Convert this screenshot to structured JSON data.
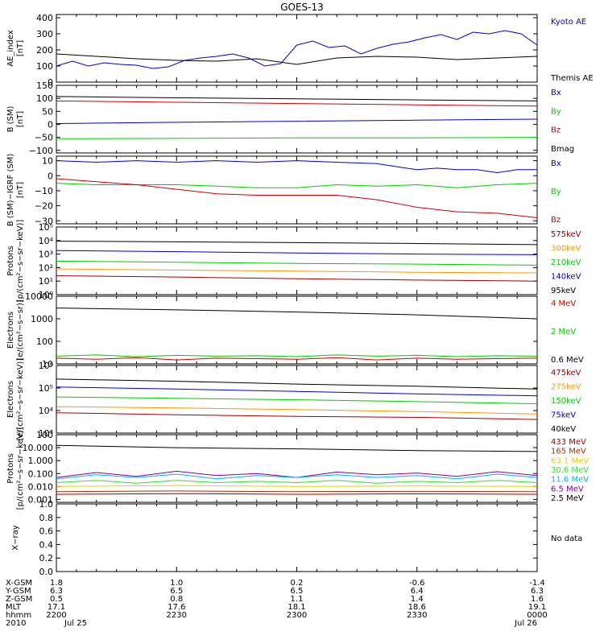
{
  "title": "GOES-13",
  "colors": {
    "black": "#000000",
    "blue": "#0000d0",
    "red": "#d00000",
    "green": "#00cc00",
    "orange": "#ff9900",
    "darkred": "#a00000",
    "brown": "#a03000",
    "yellow": "#e0d000",
    "cyan": "#00b0ff",
    "purple": "#8000a0",
    "lime": "#30dd30"
  },
  "footer": {
    "row_labels": [
      "X-GSM",
      "Y-GSM",
      "Z-GSM",
      "MLT",
      "hhmm",
      "2010"
    ],
    "columns": [
      [
        "1.8",
        "6.3",
        "0.5",
        "17.1",
        "2200",
        "Jul 25"
      ],
      [
        "1.0",
        "6.5",
        "0.8",
        "17.6",
        "2230",
        ""
      ],
      [
        "0.2",
        "6.5",
        "1.1",
        "18.1",
        "2300",
        ""
      ],
      [
        "-0.6",
        "6.4",
        "1.4",
        "18.6",
        "2330",
        ""
      ],
      [
        "-1.4",
        "6.3",
        "1.6",
        "19.1",
        "0000",
        "Jul 26"
      ]
    ]
  },
  "chart_data": [
    {
      "type": "line",
      "ylabel": [
        "AE_index",
        "[nT]"
      ],
      "scale": "linear",
      "ylim": [
        0,
        420
      ],
      "ticks": [
        0,
        100,
        200,
        300,
        400
      ],
      "tick_labels": [
        "0",
        "100",
        "200",
        "300",
        "400"
      ],
      "legend": [
        {
          "text": "Kyoto AE",
          "color": "blue"
        },
        {
          "text": "Themis AE",
          "color": "black"
        }
      ],
      "series": [
        {
          "name": "Kyoto AE",
          "color": "blue",
          "x": [
            0,
            4,
            8,
            12,
            16,
            20,
            24,
            28,
            32,
            36,
            40,
            44,
            48,
            52,
            56,
            60,
            64,
            68,
            72,
            76,
            80,
            84,
            88,
            92,
            96,
            100,
            104,
            108,
            112,
            116,
            120
          ],
          "y": [
            100,
            130,
            100,
            120,
            110,
            105,
            85,
            95,
            135,
            150,
            160,
            175,
            150,
            100,
            115,
            230,
            255,
            215,
            225,
            175,
            210,
            235,
            250,
            275,
            295,
            265,
            310,
            300,
            320,
            300,
            230
          ]
        },
        {
          "name": "Themis AE",
          "color": "black",
          "x": [
            0,
            10,
            20,
            30,
            40,
            50,
            60,
            70,
            80,
            90,
            100,
            110,
            120
          ],
          "y": [
            175,
            160,
            145,
            135,
            130,
            145,
            110,
            150,
            160,
            155,
            140,
            150,
            160
          ]
        }
      ]
    },
    {
      "type": "line",
      "ylabel": [
        "B (SM)",
        "[nT]"
      ],
      "scale": "linear",
      "ylim": [
        -110,
        150
      ],
      "ticks": [
        -100,
        -50,
        0,
        50,
        100,
        150
      ],
      "tick_labels": [
        "−100",
        "−50",
        "0",
        "50",
        "100",
        "150"
      ],
      "legend": [
        {
          "text": "Bx",
          "color": "blue"
        },
        {
          "text": "By",
          "color": "green"
        },
        {
          "text": "Bz",
          "color": "red"
        },
        {
          "text": "Bmag",
          "color": "black"
        }
      ],
      "series": [
        {
          "name": "Bx",
          "color": "blue",
          "x": [
            0,
            30,
            60,
            90,
            120
          ],
          "y": [
            3,
            8,
            12,
            16,
            20
          ]
        },
        {
          "name": "By",
          "color": "green",
          "x": [
            0,
            30,
            60,
            90,
            120
          ],
          "y": [
            -55,
            -54,
            -52,
            -52,
            -50
          ]
        },
        {
          "name": "Bz",
          "color": "red",
          "x": [
            0,
            30,
            60,
            90,
            120
          ],
          "y": [
            90,
            85,
            80,
            75,
            70
          ]
        },
        {
          "name": "Bmag",
          "color": "black",
          "x": [
            0,
            30,
            60,
            90,
            120
          ],
          "y": [
            107,
            102,
            98,
            94,
            90
          ]
        }
      ]
    },
    {
      "type": "line",
      "ylabel": [
        "B (SM)−IGRF (SM)",
        "[nT]"
      ],
      "scale": "linear",
      "ylim": [
        -32,
        13
      ],
      "ticks": [
        -30,
        -20,
        -10,
        0,
        10
      ],
      "tick_labels": [
        "−30",
        "−20",
        "−10",
        "0",
        "10"
      ],
      "legend": [
        {
          "text": "Bx",
          "color": "blue"
        },
        {
          "text": "By",
          "color": "green"
        },
        {
          "text": "Bz",
          "color": "red"
        }
      ],
      "series": [
        {
          "name": "Bx",
          "color": "blue",
          "x": [
            0,
            10,
            20,
            30,
            40,
            50,
            60,
            70,
            80,
            85,
            90,
            95,
            100,
            105,
            110,
            115,
            120
          ],
          "y": [
            10,
            9,
            10,
            9,
            10,
            9,
            10,
            9,
            8,
            6,
            4,
            5,
            4,
            4,
            2,
            4,
            4
          ]
        },
        {
          "name": "By",
          "color": "green",
          "x": [
            0,
            10,
            20,
            30,
            40,
            50,
            60,
            70,
            80,
            90,
            100,
            110,
            120
          ],
          "y": [
            -5,
            -6,
            -6,
            -6,
            -7,
            -8,
            -8,
            -6,
            -7,
            -6,
            -8,
            -6,
            -5
          ]
        },
        {
          "name": "Bz",
          "color": "red",
          "x": [
            0,
            10,
            20,
            30,
            40,
            50,
            60,
            70,
            80,
            90,
            100,
            110,
            120
          ],
          "y": [
            -2,
            -4,
            -6,
            -9,
            -12,
            -13,
            -13,
            -13,
            -16,
            -21,
            -24,
            -25,
            -28
          ]
        }
      ]
    },
    {
      "type": "line",
      "ylabel": [
        "Protons",
        "[p/(cm²−s−sr−keV)]"
      ],
      "scale": "log",
      "ylim": [
        1,
        100000
      ],
      "ticks": [
        1,
        10,
        100,
        1000,
        10000,
        100000
      ],
      "tick_labels": [
        "10⁰",
        "10¹",
        "10²",
        "10³",
        "10⁴",
        "10⁵"
      ],
      "legend": [
        {
          "text": "575keV",
          "color": "darkred"
        },
        {
          "text": "300keV",
          "color": "orange"
        },
        {
          "text": "210keV",
          "color": "green"
        },
        {
          "text": "140keV",
          "color": "blue"
        },
        {
          "text": "95keV",
          "color": "black"
        }
      ],
      "series": [
        {
          "name": "95keV",
          "color": "black",
          "x": [
            0,
            30,
            60,
            90,
            120
          ],
          "y": [
            9000,
            8000,
            7000,
            6000,
            5000
          ]
        },
        {
          "name": "140keV",
          "color": "blue",
          "x": [
            0,
            30,
            60,
            90,
            120
          ],
          "y": [
            1800,
            1500,
            1200,
            1000,
            900
          ]
        },
        {
          "name": "210keV",
          "color": "green",
          "x": [
            0,
            30,
            60,
            90,
            120
          ],
          "y": [
            300,
            250,
            200,
            180,
            150
          ]
        },
        {
          "name": "300keV",
          "color": "orange",
          "x": [
            0,
            30,
            60,
            90,
            120
          ],
          "y": [
            80,
            65,
            55,
            45,
            40
          ]
        },
        {
          "name": "575keV",
          "color": "darkred",
          "x": [
            0,
            30,
            60,
            90,
            120
          ],
          "y": [
            25,
            20,
            15,
            12,
            10
          ]
        }
      ]
    },
    {
      "type": "line",
      "ylabel": [
        "Electrons",
        "[e/(cm²−s−sr)]"
      ],
      "scale": "log",
      "ylim": [
        10,
        10000
      ],
      "ticks": [
        10,
        100,
        1000,
        10000
      ],
      "tick_labels": [
        "10",
        "100",
        "1000",
        "10000"
      ],
      "legend": [
        {
          "text": "4 MeV",
          "color": "red"
        },
        {
          "text": "2 MeV",
          "color": "green"
        },
        {
          "text": "0.6 MeV",
          "color": "black"
        }
      ],
      "series": [
        {
          "name": "0.6 MeV",
          "color": "black",
          "x": [
            0,
            30,
            60,
            90,
            120
          ],
          "y": [
            3000,
            2500,
            2000,
            1500,
            1000
          ]
        },
        {
          "name": "2 MeV",
          "color": "green",
          "x": [
            0,
            10,
            20,
            30,
            40,
            50,
            60,
            70,
            80,
            90,
            100,
            110,
            120
          ],
          "y": [
            22,
            25,
            21,
            24,
            22,
            23,
            21,
            25,
            22,
            24,
            21,
            23,
            22
          ]
        },
        {
          "name": "4 MeV",
          "color": "red",
          "x": [
            0,
            10,
            20,
            30,
            40,
            50,
            60,
            70,
            80,
            90,
            100,
            110,
            120
          ],
          "y": [
            18,
            16,
            19,
            15,
            18,
            17,
            16,
            19,
            15,
            18,
            16,
            17,
            18
          ]
        }
      ]
    },
    {
      "type": "line",
      "ylabel": [
        "Electrons",
        "[e/(cm²−s−sr−keV)]"
      ],
      "scale": "log",
      "ylim": [
        1000,
        1000000
      ],
      "ticks": [
        1000,
        10000,
        100000,
        1000000
      ],
      "tick_labels": [
        "10³",
        "10⁴",
        "10⁵",
        "10⁶"
      ],
      "legend": [
        {
          "text": "475keV",
          "color": "darkred"
        },
        {
          "text": "275keV",
          "color": "orange"
        },
        {
          "text": "150keV",
          "color": "green"
        },
        {
          "text": "75keV",
          "color": "blue"
        },
        {
          "text": "40keV",
          "color": "black"
        }
      ],
      "series": [
        {
          "name": "40keV",
          "color": "black",
          "x": [
            0,
            30,
            60,
            90,
            120
          ],
          "y": [
            250000,
            200000,
            150000,
            120000,
            90000
          ]
        },
        {
          "name": "75keV",
          "color": "blue",
          "x": [
            0,
            30,
            60,
            90,
            120
          ],
          "y": [
            110000,
            90000,
            70000,
            55000,
            45000
          ]
        },
        {
          "name": "150keV",
          "color": "green",
          "x": [
            0,
            30,
            60,
            90,
            120
          ],
          "y": [
            40000,
            35000,
            30000,
            25000,
            20000
          ]
        },
        {
          "name": "275keV",
          "color": "orange",
          "x": [
            0,
            30,
            60,
            90,
            120
          ],
          "y": [
            15000,
            13000,
            11000,
            9000,
            7000
          ]
        },
        {
          "name": "475keV",
          "color": "darkred",
          "x": [
            0,
            30,
            60,
            90,
            120
          ],
          "y": [
            8000,
            6500,
            5500,
            5000,
            4000
          ]
        }
      ]
    },
    {
      "type": "line",
      "ylabel": [
        "Protons",
        "[p/(cm²−s−sr−keV)]"
      ],
      "scale": "log",
      "ylim": [
        0.0006,
        100
      ],
      "ticks": [
        0.001,
        0.01,
        0.1,
        1,
        10,
        100
      ],
      "tick_labels": [
        "0.001",
        "0.010",
        "0.100",
        "1.000",
        "10.000",
        "100"
      ],
      "legend": [
        {
          "text": "433 MeV",
          "color": "darkred"
        },
        {
          "text": "165 MeV",
          "color": "brown"
        },
        {
          "text": "63.1 MeV",
          "color": "yellow"
        },
        {
          "text": "30.6 MeV",
          "color": "lime"
        },
        {
          "text": "11.6 MeV",
          "color": "cyan"
        },
        {
          "text": "6.5 MeV",
          "color": "purple"
        },
        {
          "text": "2.5 MeV",
          "color": "black"
        }
      ],
      "series": [
        {
          "name": "2.5 MeV",
          "color": "black",
          "x": [
            0,
            30,
            60,
            90,
            120
          ],
          "y": [
            15,
            10,
            8,
            6,
            5
          ]
        },
        {
          "name": "6.5 MeV",
          "color": "purple",
          "x": [
            0,
            10,
            20,
            30,
            40,
            50,
            60,
            70,
            80,
            90,
            100,
            110,
            120
          ],
          "y": [
            0.05,
            0.12,
            0.06,
            0.15,
            0.07,
            0.1,
            0.05,
            0.13,
            0.08,
            0.11,
            0.06,
            0.14,
            0.07
          ]
        },
        {
          "name": "11.6 MeV",
          "color": "cyan",
          "x": [
            0,
            10,
            20,
            30,
            40,
            50,
            60,
            70,
            80,
            90,
            100,
            110,
            120
          ],
          "y": [
            0.04,
            0.08,
            0.05,
            0.09,
            0.04,
            0.07,
            0.05,
            0.08,
            0.05,
            0.07,
            0.04,
            0.09,
            0.05
          ]
        },
        {
          "name": "30.6 MeV",
          "color": "lime",
          "x": [
            0,
            10,
            20,
            30,
            40,
            50,
            60,
            70,
            80,
            90,
            100,
            110,
            120
          ],
          "y": [
            0.02,
            0.03,
            0.018,
            0.03,
            0.02,
            0.025,
            0.02,
            0.03,
            0.018,
            0.025,
            0.02,
            0.03,
            0.02
          ]
        },
        {
          "name": "63.1 MeV",
          "color": "yellow",
          "x": [
            0,
            30,
            60,
            90,
            120
          ],
          "y": [
            0.01,
            0.012,
            0.01,
            0.011,
            0.01
          ]
        },
        {
          "name": "165 MeV",
          "color": "brown",
          "x": [
            0,
            30,
            60,
            90,
            120
          ],
          "y": [
            0.004,
            0.0045,
            0.004,
            0.0042,
            0.004
          ]
        },
        {
          "name": "433 MeV",
          "color": "darkred",
          "x": [
            0,
            30,
            60,
            90,
            120
          ],
          "y": [
            0.0025,
            0.0028,
            0.0025,
            0.0027,
            0.0025
          ]
        }
      ]
    },
    {
      "type": "line",
      "ylabel": [
        "X−ray"
      ],
      "scale": "linear",
      "ylim": [
        0,
        1
      ],
      "ticks": [
        0,
        0.2,
        0.4,
        0.6,
        0.8,
        1.0
      ],
      "tick_labels": [
        "0.0",
        "0.2",
        "0.4",
        "0.6",
        "0.8",
        "1.0"
      ],
      "legend": [
        {
          "text": "No data",
          "color": "black"
        }
      ],
      "series": []
    }
  ]
}
